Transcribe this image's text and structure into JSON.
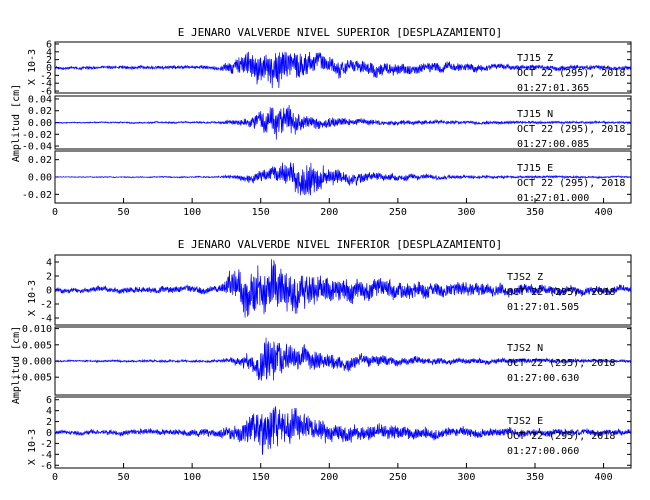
{
  "chart_data": [
    {
      "type": "line",
      "title": "E JENARO VALVERDE NIVEL SUPERIOR [DESPLAZAMIENTO]",
      "ylabel": "Amplitud [cm]",
      "xticks": [
        0,
        50,
        100,
        150,
        200,
        250,
        300,
        350,
        400
      ],
      "xlim": [
        0,
        420
      ],
      "panels": [
        {
          "station": "TJ15",
          "component": "Z",
          "date": "OCT 22 (295), 2018",
          "time": "01:27:01.365",
          "scale_label": "X 10-3",
          "ylim": [
            -6.5,
            6.5
          ],
          "yticks": [
            "6",
            "4",
            "2",
            "0",
            "-2",
            "-4",
            "-6"
          ],
          "ytick_values": [
            6,
            4,
            2,
            0,
            -2,
            -4,
            -6
          ],
          "envelope": [
            [
              0,
              0.4
            ],
            [
              120,
              0.6
            ],
            [
              130,
              2.2
            ],
            [
              150,
              4.8
            ],
            [
              160,
              6.0
            ],
            [
              175,
              4.0
            ],
            [
              200,
              2.5
            ],
            [
              250,
              1.8
            ],
            [
              300,
              1.2
            ],
            [
              350,
              0.8
            ],
            [
              420,
              0.6
            ]
          ]
        },
        {
          "station": "TJ15",
          "component": "N",
          "date": "OCT 22 (295), 2018",
          "time": "01:27:00.085",
          "ylim": [
            -0.045,
            0.045
          ],
          "yticks": [
            "0.04",
            "0.02",
            "0.00",
            "-0.02",
            "-0.04"
          ],
          "ytick_values": [
            0.04,
            0.02,
            0.0,
            -0.02,
            -0.04
          ],
          "envelope": [
            [
              0,
              0.001
            ],
            [
              120,
              0.002
            ],
            [
              140,
              0.008
            ],
            [
              155,
              0.025
            ],
            [
              165,
              0.038
            ],
            [
              180,
              0.015
            ],
            [
              220,
              0.006
            ],
            [
              300,
              0.003
            ],
            [
              420,
              0.002
            ]
          ]
        },
        {
          "station": "TJ15",
          "component": "E",
          "date": "OCT 22 (295), 2018",
          "time": "01:27:01.000",
          "ylim": [
            -0.03,
            0.03
          ],
          "yticks": [
            "0.02",
            "0.00",
            "-0.02"
          ],
          "ytick_values": [
            0.02,
            0.0,
            -0.02
          ],
          "envelope": [
            [
              0,
              0.0005
            ],
            [
              120,
              0.001
            ],
            [
              145,
              0.006
            ],
            [
              165,
              0.012
            ],
            [
              185,
              0.027
            ],
            [
              200,
              0.012
            ],
            [
              240,
              0.005
            ],
            [
              300,
              0.002
            ],
            [
              420,
              0.001
            ]
          ]
        }
      ]
    },
    {
      "type": "line",
      "title": "E JENARO VALVERDE NIVEL INFERIOR [DESPLAZAMIENTO]",
      "ylabel": "Amplitud [cm]",
      "xticks": [
        0,
        50,
        100,
        150,
        200,
        250,
        300,
        350,
        400
      ],
      "xlim": [
        0,
        420
      ],
      "panels": [
        {
          "station": "TJS2",
          "component": "Z",
          "date": "OCT 22 (295), 2018",
          "time": "01:27:01.505",
          "scale_label": "X 10-3",
          "ylim": [
            -5,
            5
          ],
          "yticks": [
            "4",
            "2",
            "0",
            "-2",
            "-4"
          ],
          "ytick_values": [
            4,
            2,
            0,
            -2,
            -4
          ],
          "envelope": [
            [
              0,
              0.4
            ],
            [
              120,
              0.6
            ],
            [
              130,
              2.5
            ],
            [
              155,
              4.2
            ],
            [
              170,
              3.5
            ],
            [
              200,
              2.0
            ],
            [
              250,
              1.5
            ],
            [
              300,
              1.2
            ],
            [
              350,
              0.8
            ],
            [
              420,
              0.6
            ]
          ]
        },
        {
          "station": "TJS2",
          "component": "N",
          "date": "OCT 22 (295), 2018",
          "time": "01:27:00.630",
          "ylim": [
            -0.0105,
            0.0105
          ],
          "yticks": [
            "0.010",
            "0.005",
            "0.000",
            "-0.005"
          ],
          "ytick_values": [
            0.01,
            0.005,
            0.0,
            -0.005
          ],
          "envelope": [
            [
              0,
              0.0003
            ],
            [
              120,
              0.0005
            ],
            [
              145,
              0.003
            ],
            [
              155,
              0.009
            ],
            [
              170,
              0.005
            ],
            [
              200,
              0.003
            ],
            [
              250,
              0.0015
            ],
            [
              300,
              0.001
            ],
            [
              420,
              0.0005
            ]
          ]
        },
        {
          "station": "TJS2",
          "component": "E",
          "date": "OCT 22 (295), 2018",
          "time": "01:27:00.060",
          "scale_label": "X 10-3",
          "ylim": [
            -6.5,
            6.5
          ],
          "yticks": [
            "6",
            "4",
            "2",
            "0",
            "-2",
            "-4",
            "-6"
          ],
          "ytick_values": [
            6,
            4,
            2,
            0,
            -2,
            -4,
            -6
          ],
          "envelope": [
            [
              0,
              0.4
            ],
            [
              120,
              0.8
            ],
            [
              140,
              3.0
            ],
            [
              155,
              5.5
            ],
            [
              170,
              4.0
            ],
            [
              200,
              2.0
            ],
            [
              250,
              1.5
            ],
            [
              300,
              1.0
            ],
            [
              350,
              0.8
            ],
            [
              420,
              0.6
            ]
          ]
        }
      ]
    }
  ]
}
